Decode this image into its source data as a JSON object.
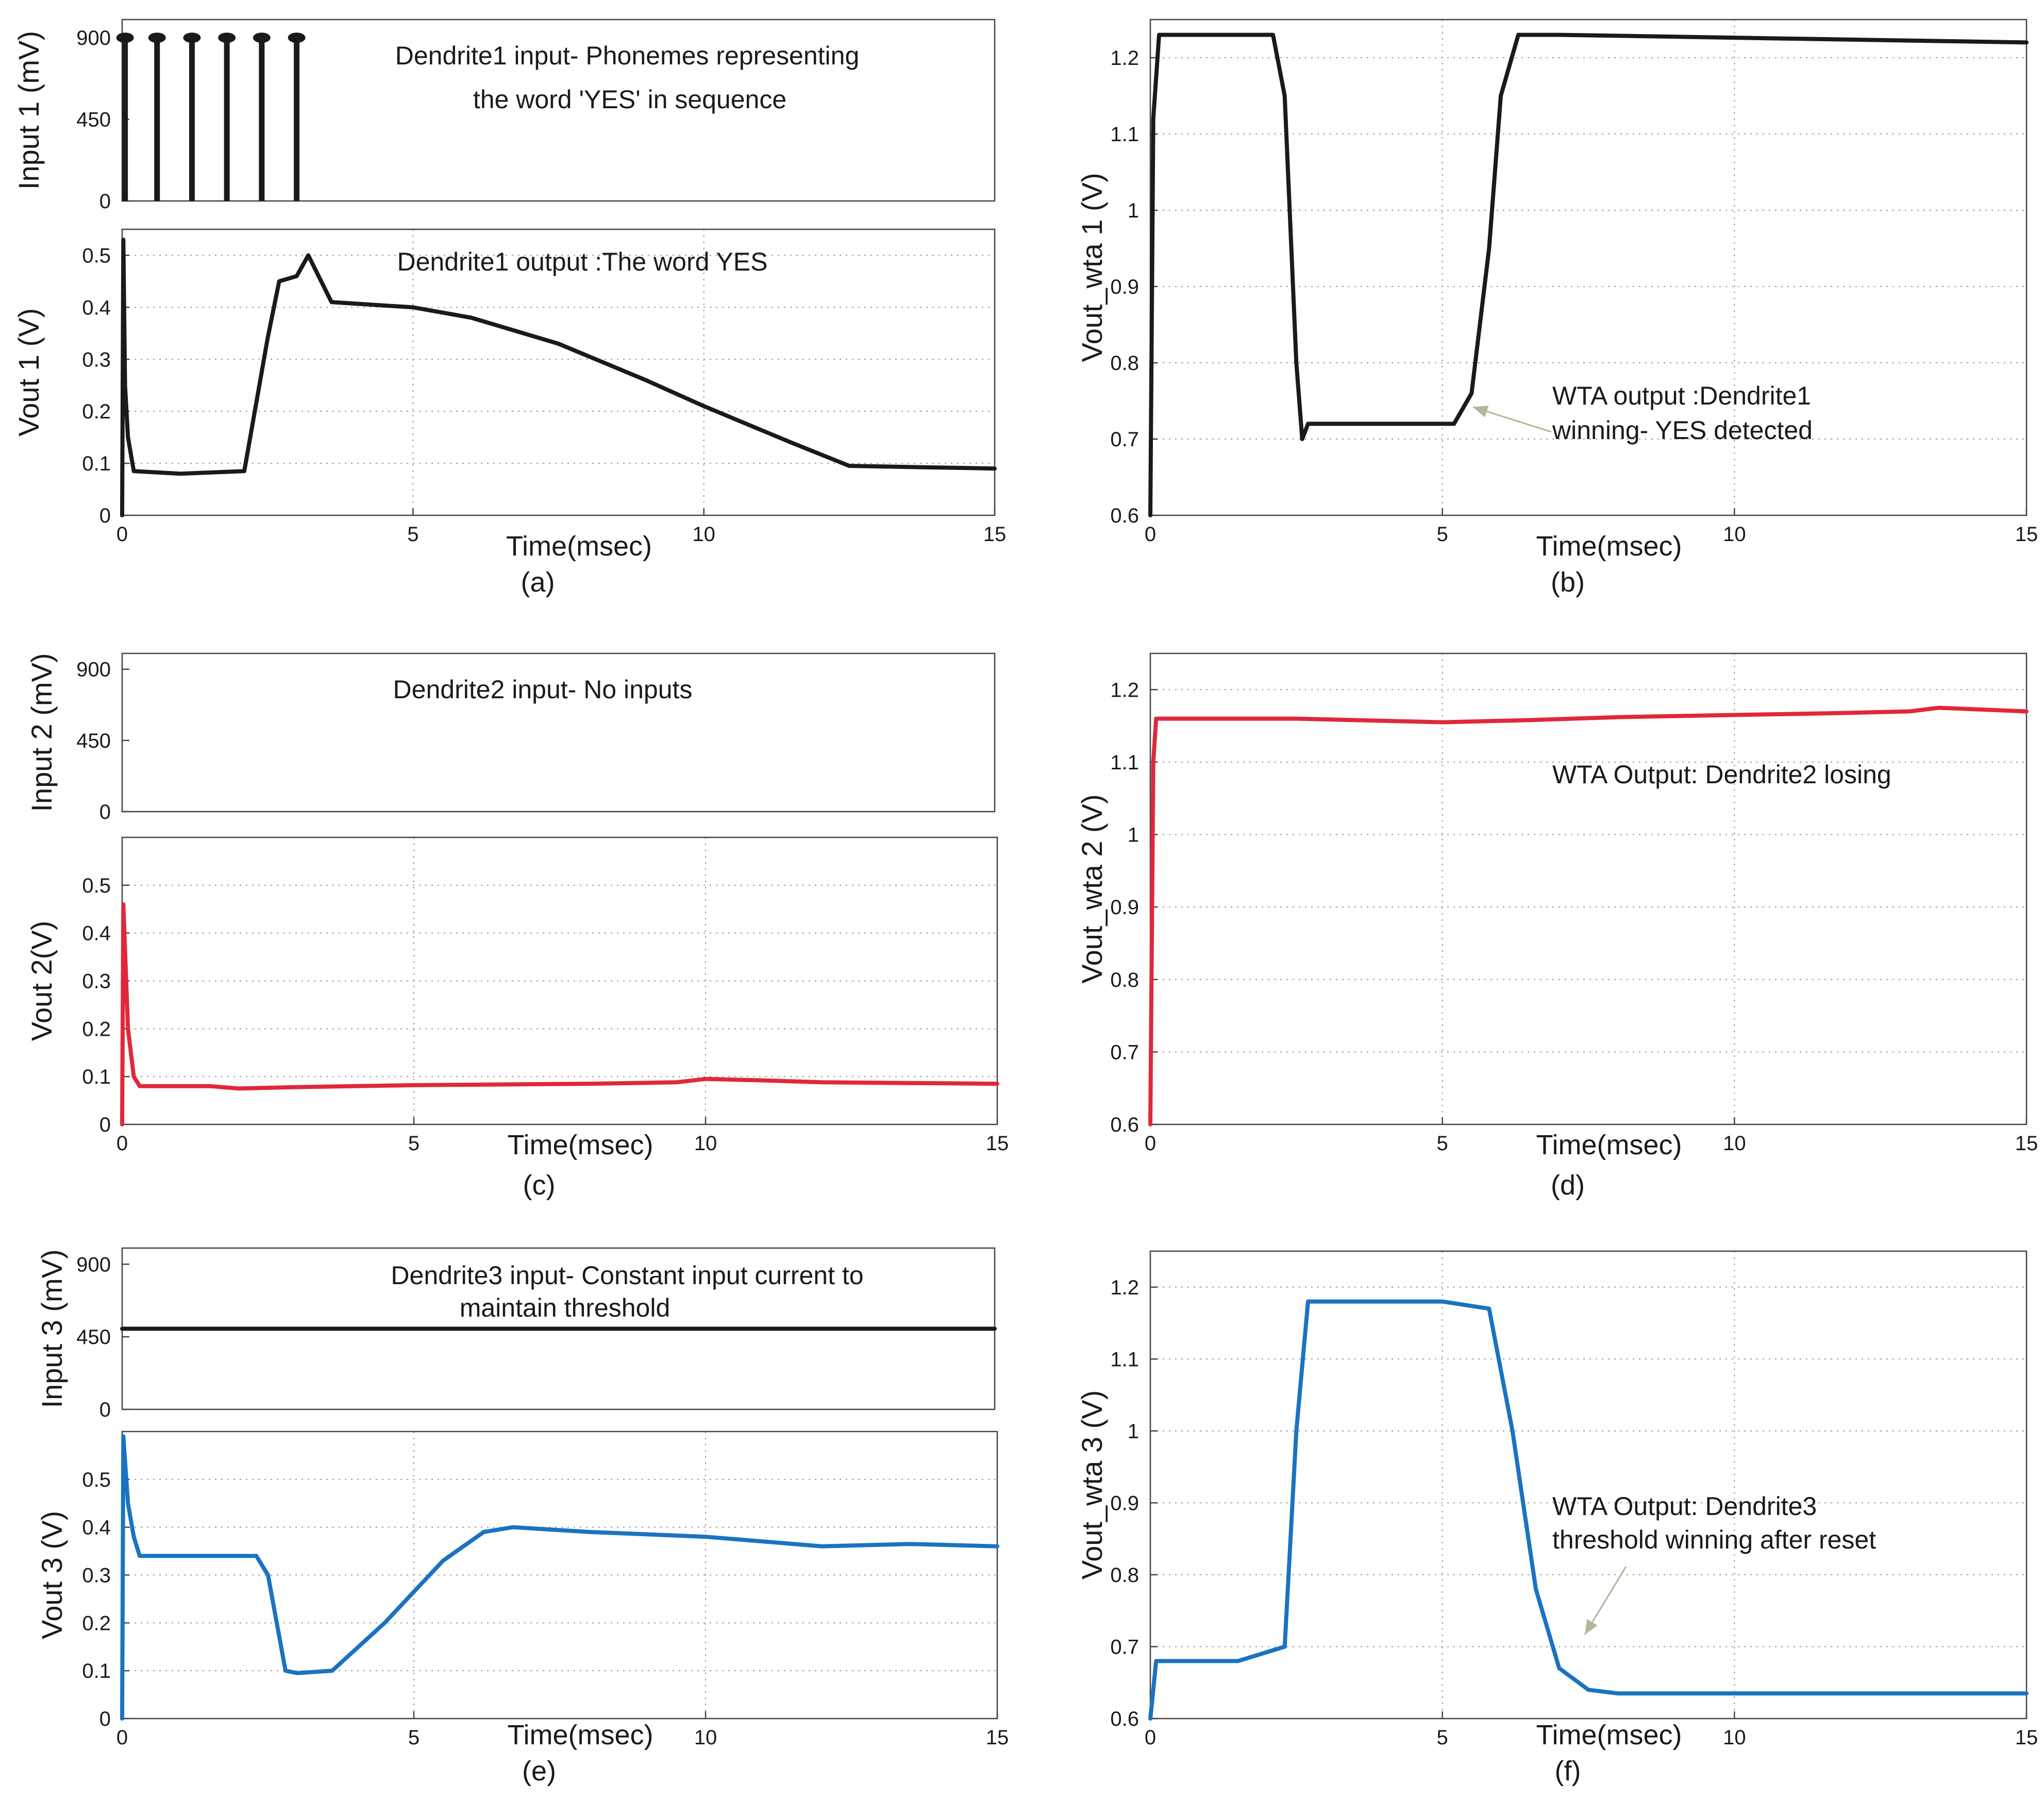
{
  "colors": {
    "black": "#1a1a1a",
    "red": "#e0283a",
    "blue": "#1a73c2",
    "grid": "#9a9a9a",
    "arrow": "#b5b59a"
  },
  "x_axis": {
    "xlabel": "Time(msec)",
    "xlim": [
      0,
      15
    ],
    "xticks": [
      "0",
      "5",
      "10",
      "15"
    ]
  },
  "panel_labels": [
    "(a)",
    "(b)",
    "(c)",
    "(d)",
    "(e)",
    "(f)"
  ],
  "chart_data": [
    {
      "id": "a_input",
      "type": "line",
      "ylabel": "Input 1 (mV)",
      "ylim": [
        0,
        1000
      ],
      "yticks": [
        0,
        450,
        900
      ],
      "grid": false,
      "color": "black",
      "annotation": [
        "Dendrite1 input- Phonemes representing",
        "the word 'YES' in sequence"
      ],
      "spikes": [
        0.05,
        0.6,
        1.2,
        1.8,
        2.4,
        3.0
      ],
      "spike_height": 900,
      "series": []
    },
    {
      "id": "a_output",
      "type": "line",
      "ylabel": "Vout 1 (V)",
      "ylim": [
        0,
        0.55
      ],
      "yticks": [
        0,
        0.1,
        0.2,
        0.3,
        0.4,
        0.5
      ],
      "grid": true,
      "color": "black",
      "annotation": [
        "Dendrite1 output :The word YES"
      ],
      "series": [
        {
          "name": "Vout 1",
          "x": [
            0,
            0.02,
            0.05,
            0.1,
            0.2,
            1.0,
            2.1,
            2.5,
            2.7,
            3.0,
            3.2,
            3.6,
            5.0,
            6.0,
            7.5,
            9.0,
            10.0,
            11.5,
            12.5,
            15.0
          ],
          "y": [
            0.0,
            0.53,
            0.25,
            0.15,
            0.085,
            0.08,
            0.085,
            0.34,
            0.45,
            0.46,
            0.5,
            0.41,
            0.4,
            0.38,
            0.33,
            0.26,
            0.21,
            0.14,
            0.095,
            0.09
          ]
        }
      ]
    },
    {
      "id": "b_wta",
      "type": "line",
      "ylabel": "Vout_wta 1 (V)",
      "ylim": [
        0.6,
        1.25
      ],
      "yticks": [
        0.6,
        0.7,
        0.8,
        0.9,
        1,
        1.1,
        1.2
      ],
      "grid": true,
      "color": "black",
      "annotation": [
        "WTA output :Dendrite1",
        "winning- YES detected"
      ],
      "series": [
        {
          "name": "Vout_wta 1",
          "x": [
            0,
            0.05,
            0.15,
            0.4,
            2.1,
            2.3,
            2.5,
            2.6,
            2.7,
            4.0,
            5.2,
            5.5,
            5.8,
            6.0,
            6.3,
            7.0,
            15.0
          ],
          "y": [
            0.6,
            1.12,
            1.23,
            1.23,
            1.23,
            1.15,
            0.8,
            0.7,
            0.72,
            0.72,
            0.72,
            0.76,
            0.95,
            1.15,
            1.23,
            1.23,
            1.22
          ]
        }
      ]
    },
    {
      "id": "c_input",
      "type": "line",
      "ylabel": "Input 2 (mV)",
      "ylim": [
        0,
        1000
      ],
      "yticks": [
        0,
        450,
        900
      ],
      "grid": false,
      "color": "black",
      "annotation": [
        "Dendrite2 input- No inputs"
      ],
      "series": []
    },
    {
      "id": "c_output",
      "type": "line",
      "ylabel": "Vout 2(V)",
      "ylim": [
        0,
        0.6
      ],
      "yticks": [
        0,
        0.1,
        0.2,
        0.3,
        0.4,
        0.5
      ],
      "grid": true,
      "color": "red",
      "annotation": [],
      "series": [
        {
          "name": "Vout 2",
          "x": [
            0,
            0.02,
            0.1,
            0.2,
            0.3,
            1.5,
            2.0,
            3.0,
            5.0,
            8.0,
            9.5,
            10.0,
            11.0,
            12.0,
            15.0
          ],
          "y": [
            0.0,
            0.46,
            0.2,
            0.1,
            0.08,
            0.08,
            0.075,
            0.078,
            0.082,
            0.085,
            0.088,
            0.095,
            0.092,
            0.088,
            0.085
          ]
        }
      ]
    },
    {
      "id": "d_wta",
      "type": "line",
      "ylabel": "Vout_wta 2 (V)",
      "ylim": [
        0.6,
        1.25
      ],
      "yticks": [
        0.6,
        0.7,
        0.8,
        0.9,
        1,
        1.1,
        1.2
      ],
      "grid": true,
      "color": "red",
      "annotation": [
        "WTA Output: Dendrite2 losing"
      ],
      "series": [
        {
          "name": "Vout_wta 2",
          "x": [
            0,
            0.05,
            0.1,
            0.3,
            2.5,
            5.0,
            6.5,
            8.0,
            10.0,
            12.0,
            13.0,
            13.5,
            15.0
          ],
          "y": [
            0.6,
            1.1,
            1.16,
            1.16,
            1.16,
            1.155,
            1.158,
            1.162,
            1.165,
            1.168,
            1.17,
            1.175,
            1.17
          ]
        }
      ]
    },
    {
      "id": "e_input",
      "type": "line",
      "ylabel": "Input 3 (mV)",
      "ylim": [
        0,
        1000
      ],
      "yticks": [
        0,
        450,
        900
      ],
      "grid": false,
      "color": "black",
      "annotation": [
        "Dendrite3 input- Constant input current to",
        "maintain threshold"
      ],
      "series": [
        {
          "name": "Input 3",
          "x": [
            0,
            15
          ],
          "y": [
            500,
            500
          ]
        }
      ]
    },
    {
      "id": "e_output",
      "type": "line",
      "ylabel": "Vout 3 (V)",
      "ylim": [
        0,
        0.6
      ],
      "yticks": [
        0,
        0.1,
        0.2,
        0.3,
        0.4,
        0.5
      ],
      "grid": true,
      "color": "blue",
      "annotation": [],
      "series": [
        {
          "name": "Vout 3",
          "x": [
            0,
            0.02,
            0.1,
            0.2,
            0.3,
            1.0,
            2.3,
            2.5,
            2.8,
            3.0,
            3.6,
            4.5,
            5.5,
            6.2,
            6.7,
            8.0,
            10.0,
            12.0,
            13.5,
            15.0
          ],
          "y": [
            0.0,
            0.59,
            0.45,
            0.38,
            0.34,
            0.34,
            0.34,
            0.3,
            0.1,
            0.095,
            0.1,
            0.2,
            0.33,
            0.39,
            0.4,
            0.39,
            0.38,
            0.36,
            0.365,
            0.36
          ]
        }
      ]
    },
    {
      "id": "f_wta",
      "type": "line",
      "ylabel": "Vout_wta 3 (V)",
      "ylim": [
        0.6,
        1.25
      ],
      "yticks": [
        0.6,
        0.7,
        0.8,
        0.9,
        1,
        1.1,
        1.2
      ],
      "grid": true,
      "color": "blue",
      "annotation": [
        "WTA Output: Dendrite3",
        "threshold winning after reset"
      ],
      "series": [
        {
          "name": "Vout_wta 3",
          "x": [
            0,
            0.1,
            0.3,
            1.5,
            2.3,
            2.5,
            2.7,
            4.0,
            5.0,
            5.8,
            6.2,
            6.6,
            7.0,
            7.5,
            8.0,
            10.0,
            15.0
          ],
          "y": [
            0.6,
            0.68,
            0.68,
            0.68,
            0.7,
            1.0,
            1.18,
            1.18,
            1.18,
            1.17,
            1.0,
            0.78,
            0.67,
            0.64,
            0.635,
            0.635,
            0.635
          ]
        }
      ]
    }
  ]
}
